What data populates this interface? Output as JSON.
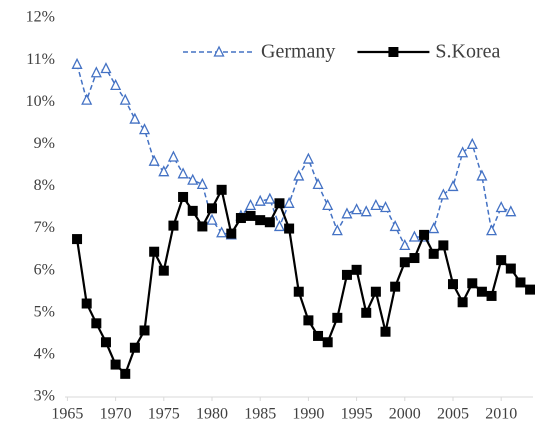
{
  "chart_data": {
    "type": "line",
    "x": [
      1966,
      1967,
      1968,
      1969,
      1970,
      1971,
      1972,
      1973,
      1974,
      1975,
      1976,
      1977,
      1978,
      1979,
      1980,
      1981,
      1982,
      1983,
      1984,
      1985,
      1986,
      1987,
      1988,
      1989,
      1990,
      1991,
      1992,
      1993,
      1994,
      1995,
      1996,
      1997,
      1998,
      1999,
      2000,
      2001,
      2002,
      2003,
      2004,
      2005,
      2006,
      2007,
      2008,
      2009,
      2010,
      2011,
      2012,
      2013
    ],
    "series": [
      {
        "name": "Germany",
        "color": "#4472c4",
        "dashed": true,
        "marker": "triangle",
        "values": [
          10.9,
          10.05,
          10.7,
          10.8,
          10.4,
          10.05,
          9.6,
          9.35,
          8.6,
          8.35,
          8.7,
          8.3,
          8.15,
          8.05,
          7.2,
          6.9,
          6.85,
          7.3,
          7.55,
          7.65,
          7.7,
          7.05,
          7.6,
          8.25,
          8.65,
          8.05,
          7.55,
          6.95,
          7.35,
          7.45,
          7.4,
          7.55,
          7.5,
          7.05,
          6.6,
          6.8,
          6.8,
          7.0,
          7.8,
          8.0,
          8.8,
          9.0,
          8.25,
          6.95,
          7.5,
          7.4,
          null,
          null
        ]
      },
      {
        "name": "S.Korea",
        "color": "#000000",
        "dashed": false,
        "marker": "square",
        "values": [
          6.75,
          5.22,
          4.75,
          4.3,
          3.77,
          3.55,
          4.17,
          4.58,
          6.45,
          6.0,
          7.07,
          7.75,
          7.42,
          7.05,
          7.48,
          7.92,
          6.88,
          7.25,
          7.3,
          7.2,
          7.15,
          7.6,
          7.0,
          5.5,
          4.82,
          4.45,
          4.3,
          4.88,
          5.9,
          6.02,
          5.0,
          5.5,
          4.55,
          5.62,
          6.2,
          6.3,
          6.85,
          6.4,
          6.6,
          5.68,
          5.25,
          5.7,
          5.5,
          5.4,
          6.25,
          6.05,
          5.72,
          5.55
        ]
      }
    ],
    "xlim": [
      1964.75,
      2013.3
    ],
    "xticks": [
      1965,
      1970,
      1975,
      1980,
      1985,
      1990,
      1995,
      2000,
      2005,
      2010
    ],
    "ylim": [
      3,
      12
    ],
    "yticks": [
      {
        "value": 3,
        "label": "3%"
      },
      {
        "value": 4,
        "label": "4%"
      },
      {
        "value": 5,
        "label": "5%"
      },
      {
        "value": 6,
        "label": "6%"
      },
      {
        "value": 7,
        "label": "7%"
      },
      {
        "value": 8,
        "label": "8%"
      },
      {
        "value": 9,
        "label": "9%"
      },
      {
        "value": 10,
        "label": "10%"
      },
      {
        "value": 11,
        "label": "11%"
      },
      {
        "value": 12,
        "label": "12%"
      }
    ],
    "grid": false,
    "legend": "top-right"
  }
}
